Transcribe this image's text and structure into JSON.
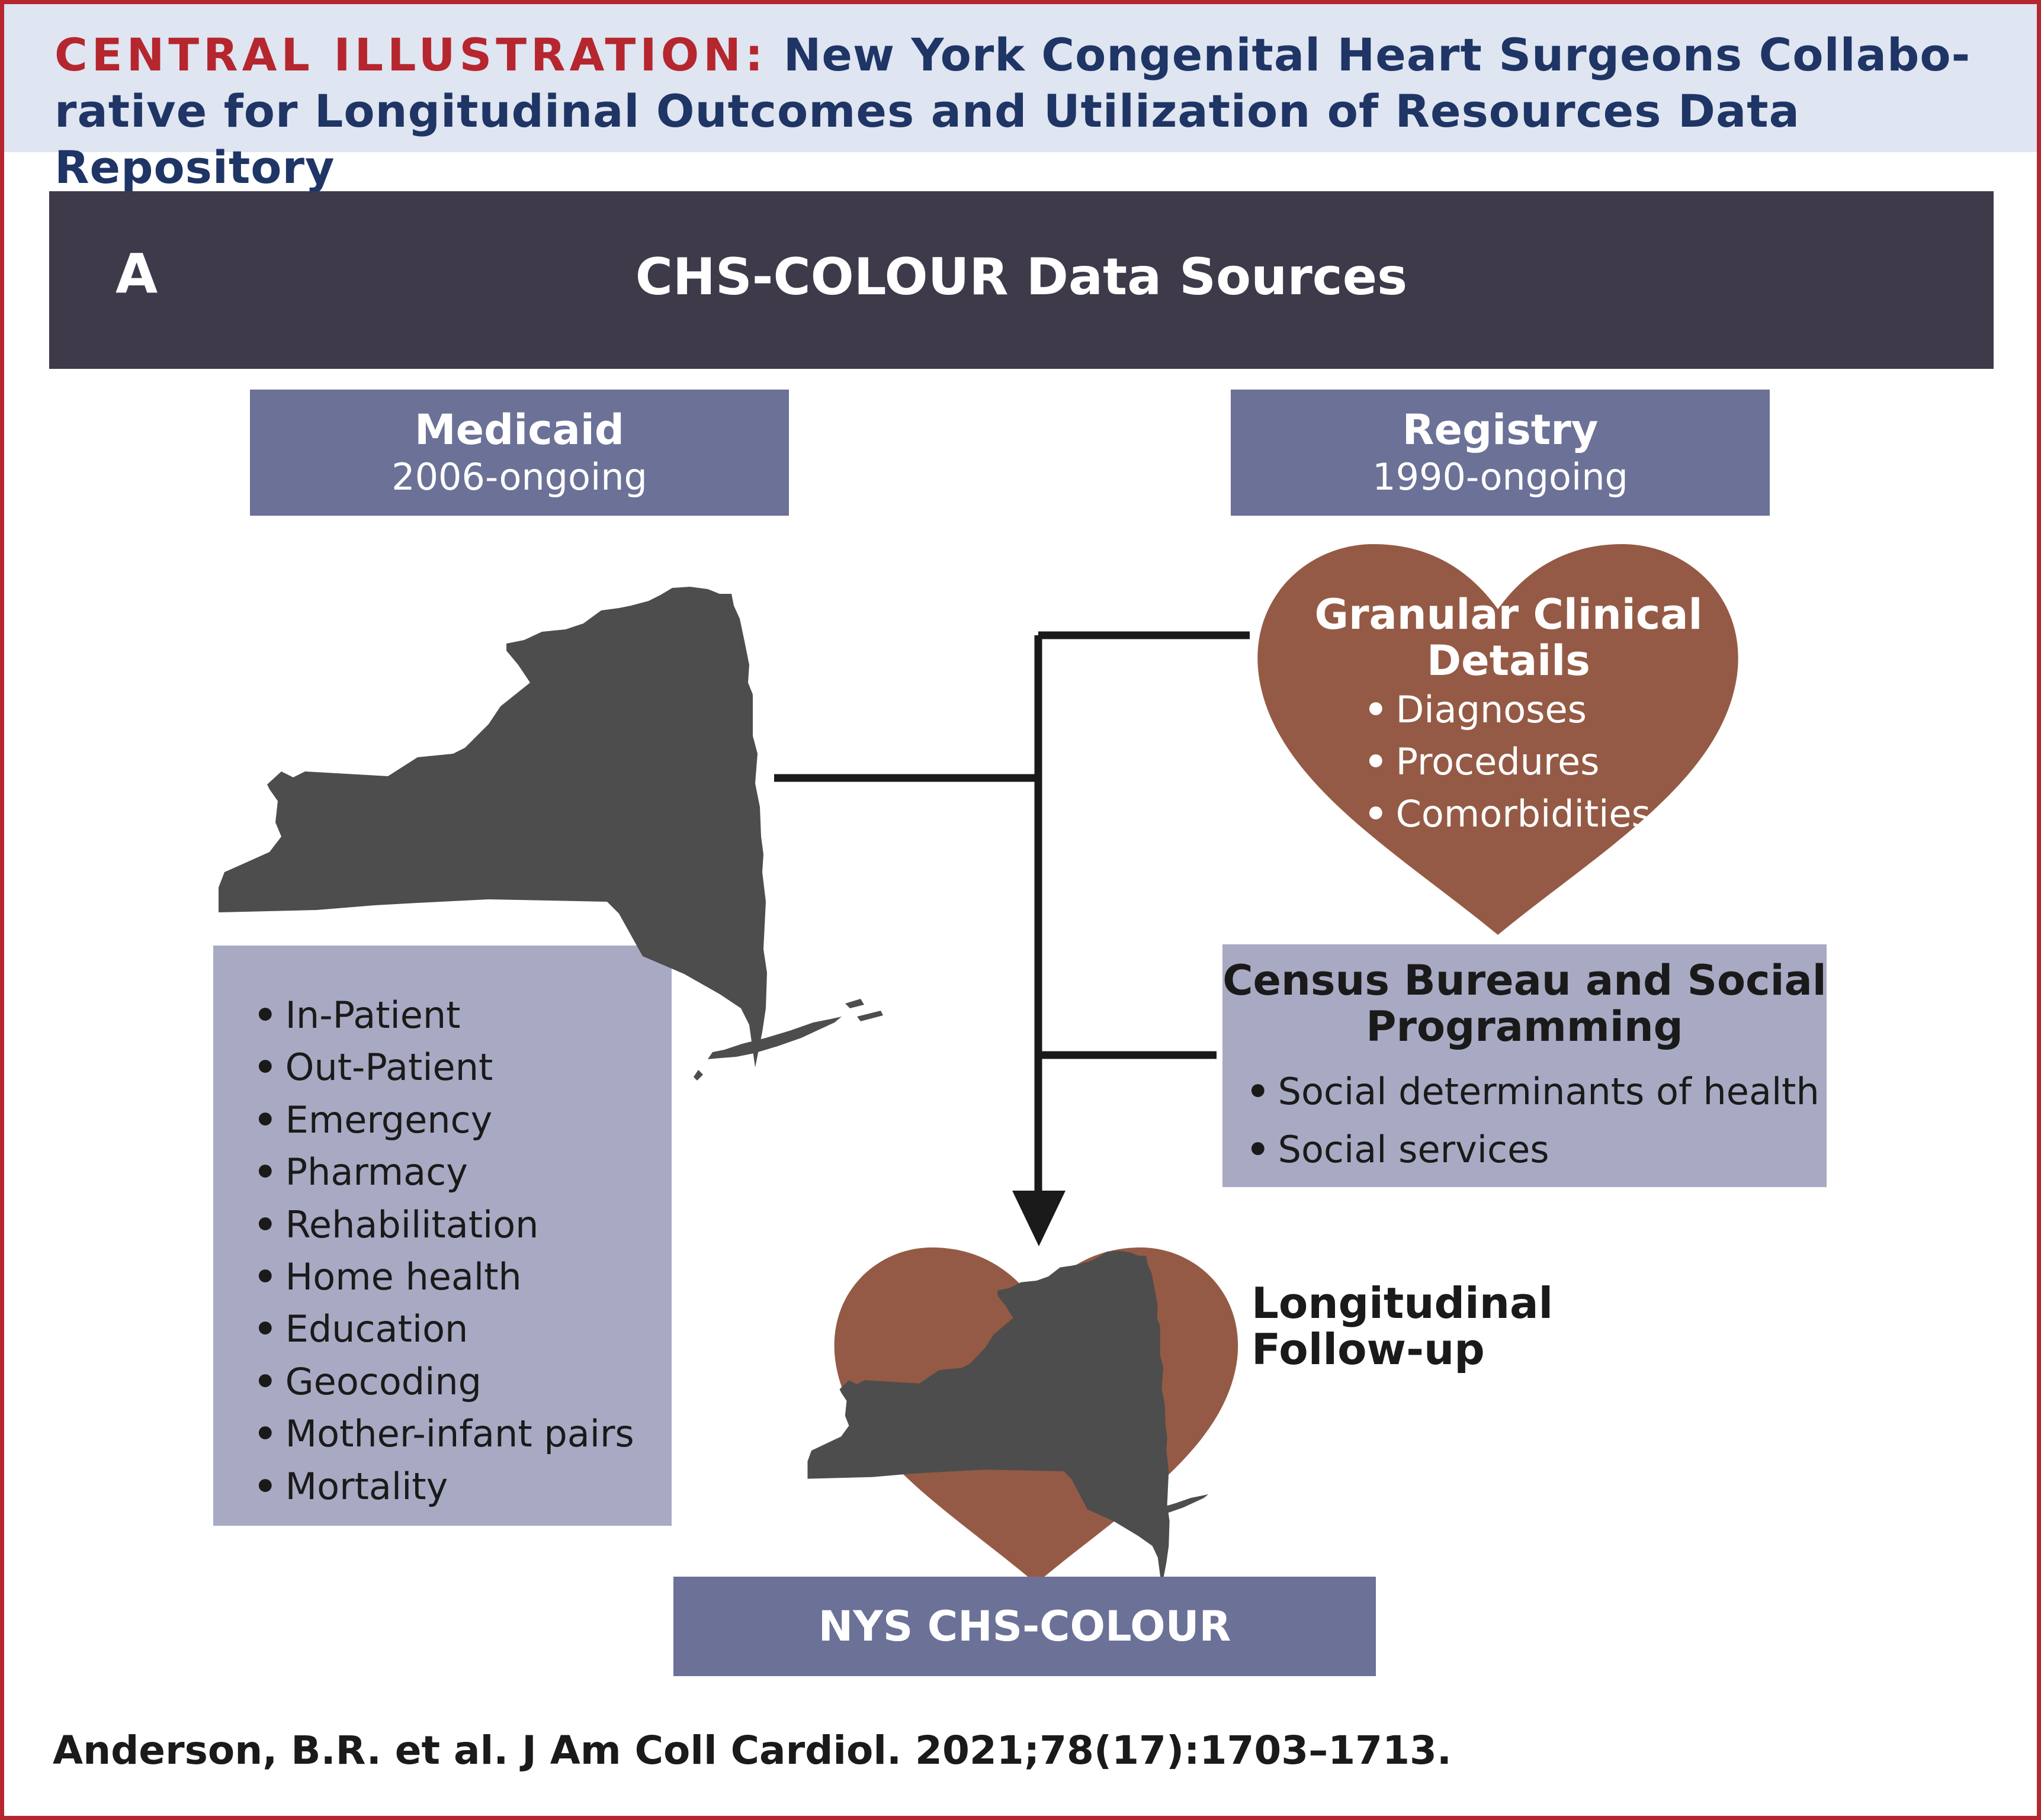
{
  "header": {
    "label": "CENTRAL ILLUSTRATION:",
    "title": "New York Congenital Heart Surgeons Collabo- rative for Longitudinal Outcomes and Utilization of Resources Data Repository"
  },
  "panel": {
    "letter": "A",
    "title": "CHS-COLOUR Data Sources"
  },
  "medicaid": {
    "title": "Medicaid",
    "years": "2006-ongoing",
    "items": [
      "In-Patient",
      "Out-Patient",
      "Emergency",
      "Pharmacy",
      "Rehabilitation",
      "Home health",
      "Education",
      "Geocoding",
      "Mother-infant pairs",
      "Mortality"
    ]
  },
  "registry": {
    "title": "Registry",
    "years": "1990-ongoing",
    "heart_title": "Granular Clinical Details",
    "items": [
      "Diagnoses",
      "Procedures",
      "Comorbidities"
    ]
  },
  "census": {
    "title": "Census Bureau and Social Programming",
    "items": [
      "Social determinants of health",
      "Social services"
    ]
  },
  "output": {
    "side_label": "Longitudinal Follow-up",
    "box_label": "NYS CHS-COLOUR"
  },
  "citation": "Anderson, B.R. et al. J Am Coll Cardiol. 2021;78(17):1703–1713.",
  "colors": {
    "accent_red": "#b5262e",
    "header_bg": "#dfe5f1",
    "header_text": "#1e3565",
    "banner_bg": "#3e3a4a",
    "source_box": "#6b7197",
    "list_box": "#a8aac3",
    "heart": "#955a45",
    "map": "#4d4d4d"
  },
  "icons": [
    "new-york-map-icon",
    "heart-icon",
    "arrow-down-icon"
  ]
}
